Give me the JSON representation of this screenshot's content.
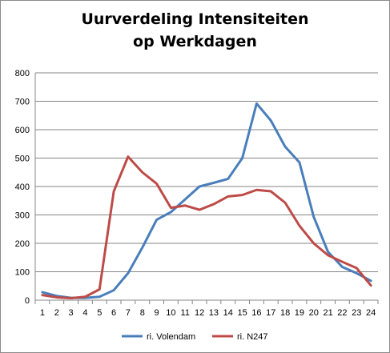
{
  "chart_data": {
    "type": "line",
    "title_lines": [
      "Uurverdeling Intensiteiten",
      "op Werkdagen"
    ],
    "x": [
      "1",
      "2",
      "3",
      "4",
      "5",
      "6",
      "7",
      "8",
      "9",
      "10",
      "11",
      "12",
      "13",
      "14",
      "15",
      "16",
      "17",
      "18",
      "19",
      "20",
      "21",
      "22",
      "23",
      "24"
    ],
    "ylim": [
      0,
      800
    ],
    "yticks": [
      0,
      100,
      200,
      300,
      400,
      500,
      600,
      700,
      800
    ],
    "grid": true,
    "legend_position": "bottom",
    "series": [
      {
        "name": "ri. Volendam",
        "color": "#4a7ebb",
        "values": [
          28,
          15,
          8,
          8,
          12,
          35,
          95,
          185,
          283,
          310,
          355,
          400,
          413,
          427,
          500,
          692,
          632,
          540,
          485,
          293,
          170,
          117,
          95,
          68
        ]
      },
      {
        "name": "ri. N247",
        "color": "#be4b48",
        "values": [
          18,
          10,
          7,
          12,
          38,
          383,
          505,
          450,
          410,
          325,
          333,
          318,
          338,
          365,
          370,
          388,
          383,
          343,
          262,
          200,
          158,
          135,
          113,
          52
        ]
      }
    ]
  }
}
